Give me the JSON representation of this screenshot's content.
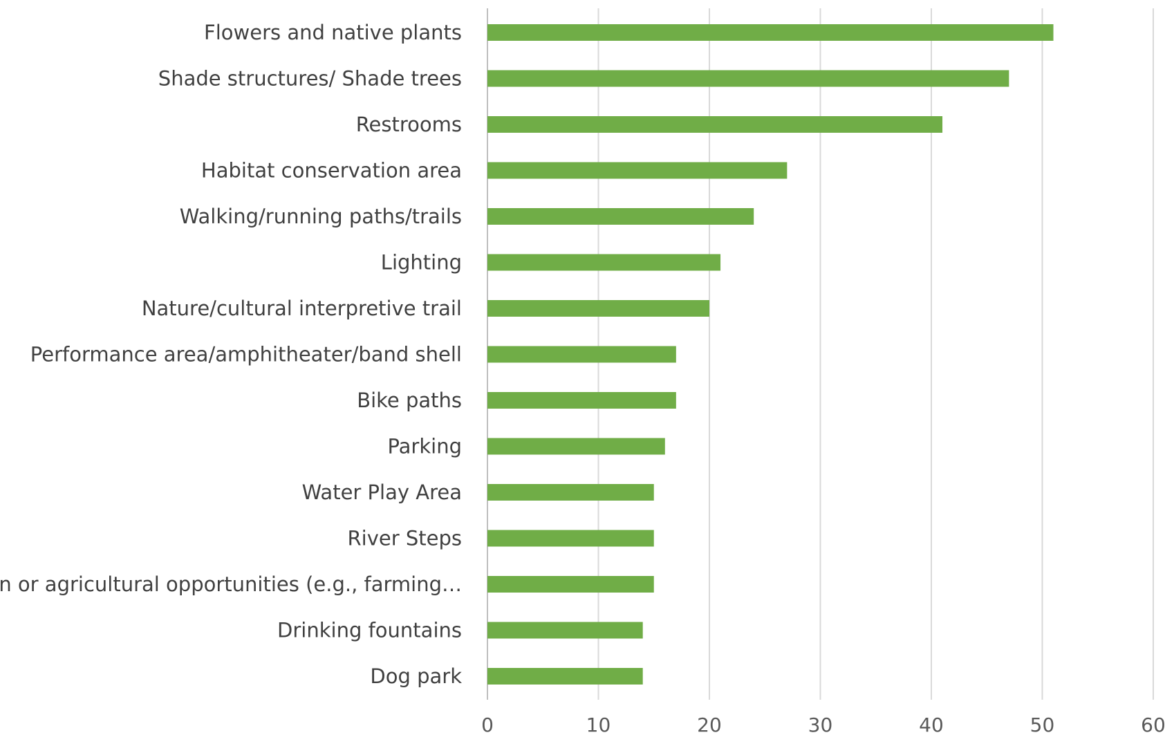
{
  "chart_data": {
    "type": "bar",
    "orientation": "horizontal",
    "title": "",
    "xlabel": "",
    "ylabel": "",
    "categories": [
      "Flowers and native plants",
      "Shade structures/ Shade trees",
      "Restrooms",
      "Habitat conservation area",
      "Walking/running paths/trails",
      "Lighting",
      "Nature/cultural interpretive trail",
      "Performance area/amphitheater/band shell",
      "Bike paths",
      "Parking",
      "Water Play Area",
      "River Steps",
      "Garden or agricultural opportunities (e.g., farming…",
      "Drinking fountains",
      "Dog park"
    ],
    "values": [
      51,
      47,
      41,
      27,
      24,
      21,
      20,
      17,
      17,
      16,
      15,
      15,
      15,
      14,
      14
    ],
    "xlim": [
      0,
      60
    ],
    "x_ticks": [
      0,
      10,
      20,
      30,
      40,
      50,
      60
    ],
    "grid": "vertical",
    "legend": "none",
    "bar_color": "#70ad47"
  }
}
